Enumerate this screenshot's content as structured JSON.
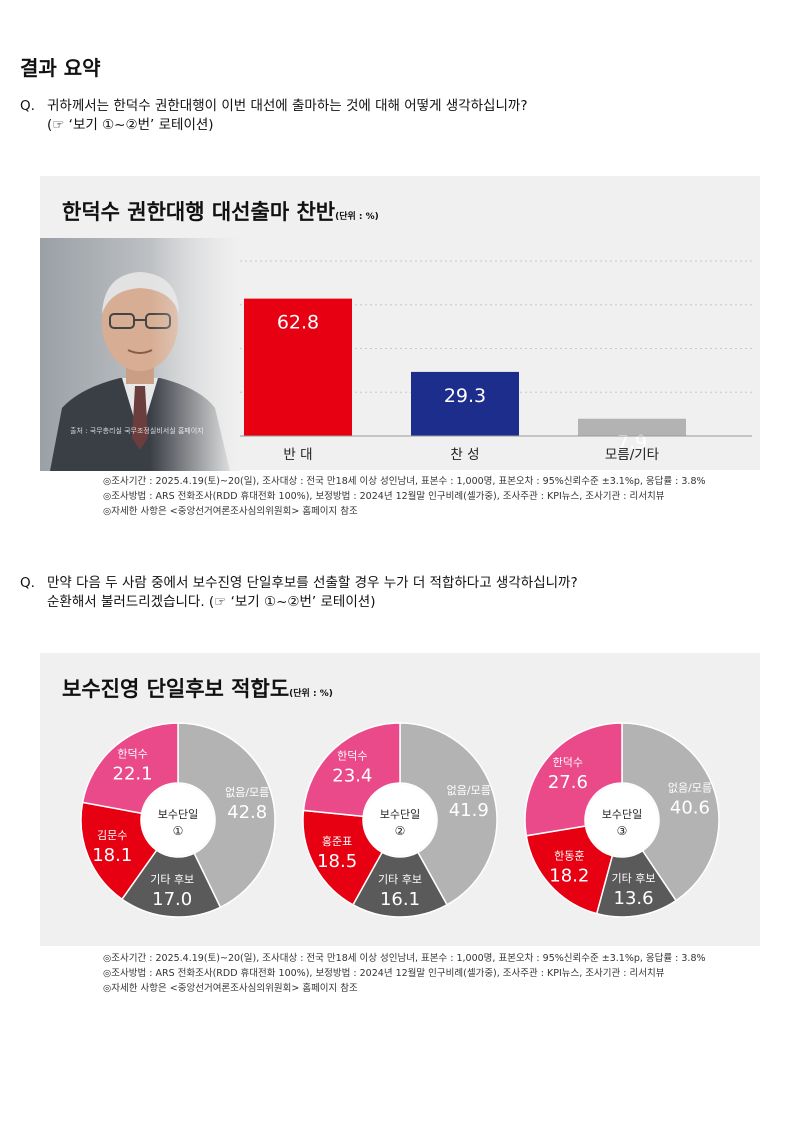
{
  "page_title": "결과 요약",
  "q1": {
    "mark": "Q.",
    "line1": "귀하께서는 한덕수 권한대행이 이번 대선에 출마하는 것에 대해 어떻게 생각하십니까?",
    "line2": "(☞ ‘보기 ①~②번’ 로테이션)"
  },
  "q2": {
    "mark": "Q.",
    "line1": "만약 다음 두 사람 중에서 보수진영 단일후보를 선출할 경우 누가 더 적합하다고 생각하십니까?",
    "line2": "순환해서 불러드리겠습니다. (☞ ‘보기 ①~②번’ 로테이션)"
  },
  "photo_caption": "출처 : 국무총리실 국무조정실비서실 홈페이지",
  "notes": {
    "line1": "◎조사기간 : 2025.4.19(토)~20(일), 조사대상 : 전국 만18세 이상 성인남녀, 표본수 : 1,000명, 표본오차 : 95%신뢰수준 ±3.1%p, 응답률 : 3.8%",
    "line2": "◎조사방법 : ARS 전화조사(RDD 휴대전화 100%), 보정방법 : 2024년 12월말 인구비례(셀가중), 조사주관 : KPI뉴스, 조사기관 : 리서치뷰",
    "line3": "◎자세한 사항은 <중앙선거여론조사심의위원회> 홈페이지 참조"
  },
  "colors": {
    "red": "#e60012",
    "navy": "#1c2d8c",
    "gray": "#b3b3b3",
    "dark_gray": "#5a5a5a",
    "pink": "#ea4a8a"
  },
  "chart_data": [
    {
      "type": "bar",
      "title": "한덕수 권한대행 대선출마 찬반",
      "unit": "(단위 : %)",
      "categories": [
        "반 대",
        "찬 성",
        "모름/기타"
      ],
      "values": [
        62.8,
        29.3,
        7.9
      ],
      "value_labels": [
        "62.8",
        "29.3",
        "7.9"
      ],
      "colors": [
        "#e60012",
        "#1c2d8c",
        "#b3b3b3"
      ],
      "ylim": [
        0,
        80
      ],
      "grid": true
    },
    {
      "type": "pie",
      "title": "보수진영 단일후보 적합도",
      "unit": "(단위 : %)",
      "donuts": [
        {
          "center_label": "보수단일",
          "center_num": "①",
          "slices": [
            {
              "name": "없음/모름",
              "value": 42.8,
              "label": "42.8",
              "color": "#b3b3b3"
            },
            {
              "name": "기타 후보",
              "value": 17.0,
              "label": "17.0",
              "color": "#5a5a5a"
            },
            {
              "name": "김문수",
              "value": 18.1,
              "label": "18.1",
              "color": "#e60012"
            },
            {
              "name": "한덕수",
              "value": 22.1,
              "label": "22.1",
              "color": "#ea4a8a"
            }
          ]
        },
        {
          "center_label": "보수단일",
          "center_num": "②",
          "slices": [
            {
              "name": "없음/모름",
              "value": 41.9,
              "label": "41.9",
              "color": "#b3b3b3"
            },
            {
              "name": "기타 후보",
              "value": 16.1,
              "label": "16.1",
              "color": "#5a5a5a"
            },
            {
              "name": "홍준표",
              "value": 18.5,
              "label": "18.5",
              "color": "#e60012"
            },
            {
              "name": "한덕수",
              "value": 23.4,
              "label": "23.4",
              "color": "#ea4a8a"
            }
          ]
        },
        {
          "center_label": "보수단일",
          "center_num": "③",
          "slices": [
            {
              "name": "없음/모름",
              "value": 40.6,
              "label": "40.6",
              "color": "#b3b3b3"
            },
            {
              "name": "기타 후보",
              "value": 13.6,
              "label": "13.6",
              "color": "#5a5a5a"
            },
            {
              "name": "한동훈",
              "value": 18.2,
              "label": "18.2",
              "color": "#e60012"
            },
            {
              "name": "한덕수",
              "value": 27.6,
              "label": "27.6",
              "color": "#ea4a8a"
            }
          ]
        }
      ]
    }
  ]
}
